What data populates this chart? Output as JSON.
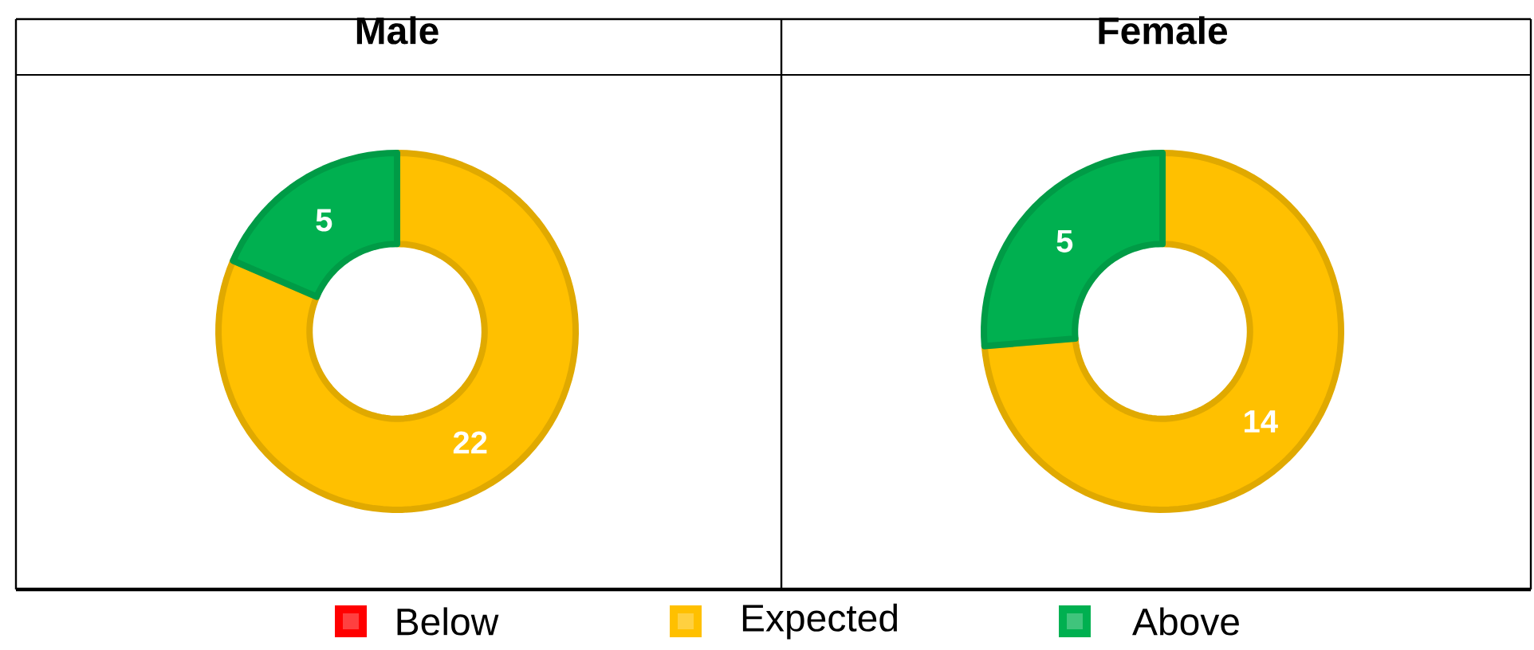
{
  "chart_data": [
    {
      "type": "donut",
      "title": "Male",
      "categories": [
        "Below",
        "Expected",
        "Above"
      ],
      "values": [
        0,
        22,
        5
      ],
      "colors": [
        "#ff0000",
        "#ffc000",
        "#00b050"
      ],
      "value_labels": [
        null,
        "22",
        "5"
      ],
      "legend": "bottom"
    },
    {
      "type": "donut",
      "title": "Female",
      "categories": [
        null,
        null,
        null
      ],
      "values": [
        0,
        14,
        5
      ],
      "colors": [
        "#ff0000",
        "#ffc000",
        "#00b050"
      ],
      "value_labels": [
        null,
        "14",
        "5"
      ]
    }
  ]
}
